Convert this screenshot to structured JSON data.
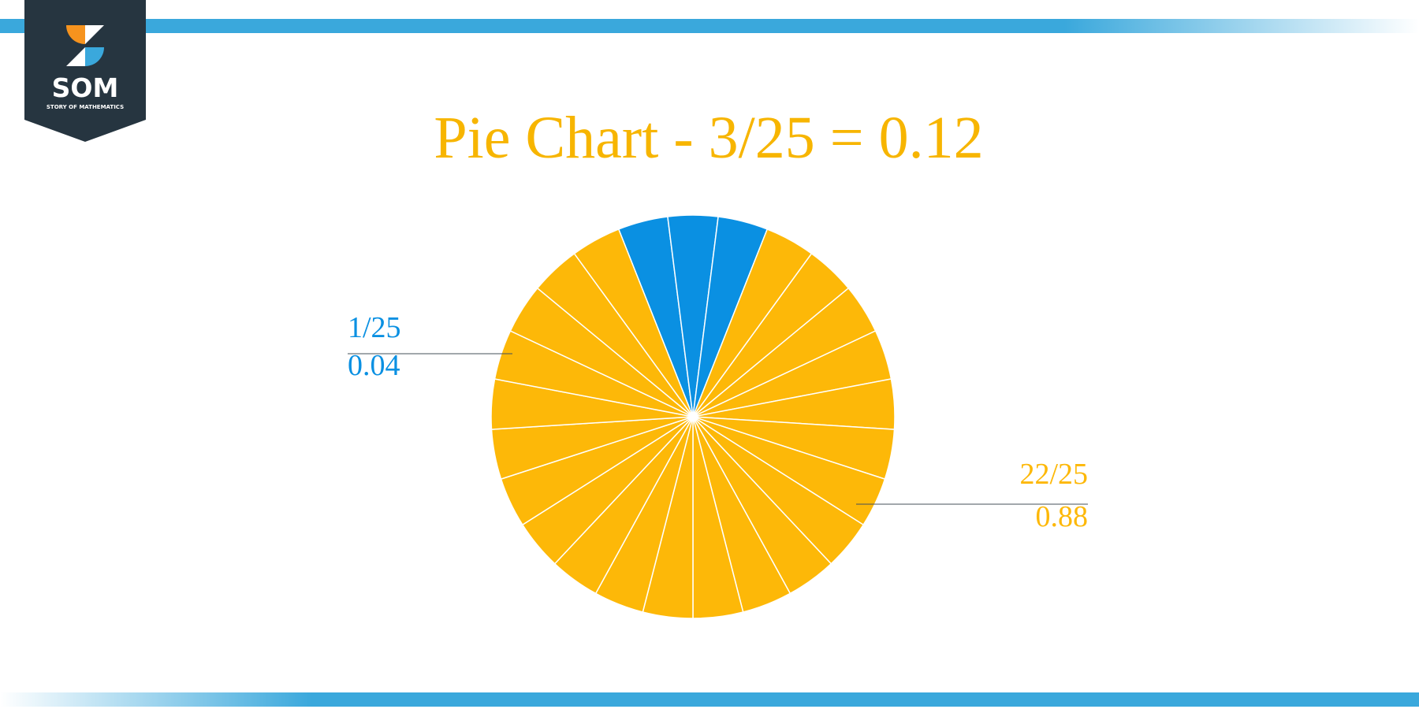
{
  "logo": {
    "mark": "SOM",
    "tagline": "STORY OF MATHEMATICS"
  },
  "chart_data": {
    "type": "pie",
    "title": "Pie Chart - 3/25 = 0.12",
    "values": [
      0.04,
      0.04,
      0.04,
      0.04,
      0.04,
      0.04,
      0.04,
      0.04,
      0.04,
      0.04,
      0.04,
      0.04,
      0.04,
      0.04,
      0.04,
      0.04,
      0.04,
      0.04,
      0.04,
      0.04,
      0.04,
      0.04,
      0.04,
      0.04,
      0.04
    ],
    "colors": [
      "#0a90e2",
      "#0a90e2",
      "#0a90e2",
      "#fdb808",
      "#fdb808",
      "#fdb808",
      "#fdb808",
      "#fdb808",
      "#fdb808",
      "#fdb808",
      "#fdb808",
      "#fdb808",
      "#fdb808",
      "#fdb808",
      "#fdb808",
      "#fdb808",
      "#fdb808",
      "#fdb808",
      "#fdb808",
      "#fdb808",
      "#fdb808",
      "#fdb808",
      "#fdb808",
      "#fdb808",
      "#fdb808"
    ],
    "annotations": [
      {
        "fraction": "1/25",
        "decimal": 0.04,
        "color": "#0a90e2"
      },
      {
        "fraction": "22/25",
        "decimal": 0.88,
        "color": "#fdb808"
      }
    ]
  }
}
